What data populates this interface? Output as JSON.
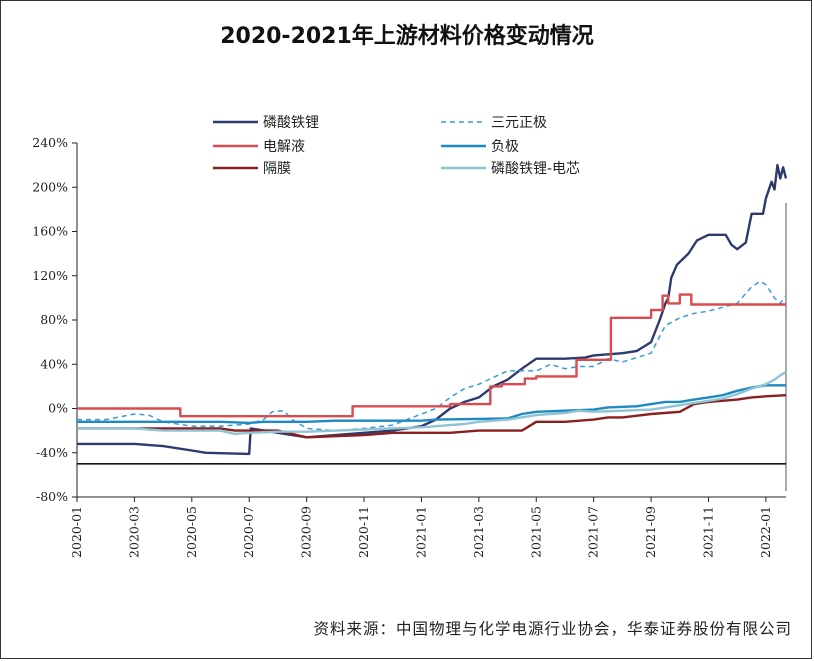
{
  "chart_data": {
    "type": "line",
    "title": "2020-2021年上游材料价格变动情况",
    "source": "资料来源：中国物理与化学电源行业协会，华泰证券股份有限公司",
    "ylim": [
      -80,
      240
    ],
    "yticks": [
      "240%",
      "200%",
      "160%",
      "120%",
      "80%",
      "40%",
      "0%",
      "-40%",
      "-80%"
    ],
    "xlim": [
      0,
      24.7
    ],
    "xticks": [
      "2020-01",
      "2020-03",
      "2020-05",
      "2020-07",
      "2020-09",
      "2020-11",
      "2021-01",
      "2021-03",
      "2021-05",
      "2021-07",
      "2021-09",
      "2021-11",
      "2022-01"
    ],
    "legend_position": "top",
    "series": [
      {
        "name": "磷酸铁锂",
        "color": "#2e3a6e",
        "dash": false,
        "points": [
          [
            0,
            -32
          ],
          [
            2,
            -32
          ],
          [
            3,
            -34
          ],
          [
            4,
            -38
          ],
          [
            4.5,
            -40
          ],
          [
            6,
            -41
          ],
          [
            6.05,
            -18
          ],
          [
            7,
            -22
          ],
          [
            8,
            -26
          ],
          [
            9,
            -24
          ],
          [
            10,
            -22
          ],
          [
            11,
            -20
          ],
          [
            12,
            -16
          ],
          [
            12.5,
            -10
          ],
          [
            13,
            0
          ],
          [
            13.5,
            6
          ],
          [
            14,
            10
          ],
          [
            14.5,
            20
          ],
          [
            15,
            26
          ],
          [
            15.5,
            36
          ],
          [
            16,
            45
          ],
          [
            17,
            45
          ],
          [
            17.7,
            46
          ],
          [
            18,
            48
          ],
          [
            19,
            50
          ],
          [
            19.5,
            52
          ],
          [
            20,
            60
          ],
          [
            20.3,
            80
          ],
          [
            20.5,
            95
          ],
          [
            20.6,
            100
          ],
          [
            20.7,
            118
          ],
          [
            20.9,
            130
          ],
          [
            21.3,
            140
          ],
          [
            21.6,
            152
          ],
          [
            22,
            157
          ],
          [
            22.6,
            157
          ],
          [
            22.8,
            148
          ],
          [
            23,
            144
          ],
          [
            23.3,
            150
          ],
          [
            23.5,
            176
          ],
          [
            23.9,
            176
          ],
          [
            24.0,
            190
          ],
          [
            24.2,
            205
          ],
          [
            24.3,
            198
          ],
          [
            24.4,
            220
          ],
          [
            24.5,
            208
          ],
          [
            24.6,
            218
          ],
          [
            24.7,
            208
          ]
        ]
      },
      {
        "name": "三元正极",
        "color": "#3a9ad9",
        "dash": true,
        "points": [
          [
            0,
            -10
          ],
          [
            1,
            -10
          ],
          [
            2,
            -5
          ],
          [
            2.5,
            -6
          ],
          [
            3,
            -12
          ],
          [
            4,
            -16
          ],
          [
            5,
            -16
          ],
          [
            6,
            -14
          ],
          [
            6.5,
            -10
          ],
          [
            6.8,
            -3
          ],
          [
            7.2,
            -2
          ],
          [
            7.5,
            -10
          ],
          [
            8,
            -18
          ],
          [
            9,
            -20
          ],
          [
            10,
            -18
          ],
          [
            11,
            -15
          ],
          [
            11.5,
            -10
          ],
          [
            12,
            -5
          ],
          [
            12.5,
            0
          ],
          [
            13,
            10
          ],
          [
            13.5,
            18
          ],
          [
            14,
            22
          ],
          [
            14.5,
            28
          ],
          [
            15,
            34
          ],
          [
            16,
            34
          ],
          [
            16.5,
            40
          ],
          [
            17,
            36
          ],
          [
            17.5,
            38
          ],
          [
            18,
            38
          ],
          [
            18.5,
            45
          ],
          [
            19,
            42
          ],
          [
            19.5,
            46
          ],
          [
            20,
            50
          ],
          [
            20.2,
            60
          ],
          [
            20.5,
            75
          ],
          [
            21,
            82
          ],
          [
            21.5,
            86
          ],
          [
            22,
            88
          ],
          [
            23,
            95
          ],
          [
            23.5,
            110
          ],
          [
            23.8,
            115
          ],
          [
            24,
            112
          ],
          [
            24.3,
            100
          ],
          [
            24.5,
            95
          ],
          [
            24.7,
            102
          ]
        ]
      },
      {
        "name": "电解液",
        "color": "#d94b4f",
        "dash": false,
        "points": [
          [
            0,
            0
          ],
          [
            3.6,
            0
          ],
          [
            3.6,
            -7
          ],
          [
            9.6,
            -7
          ],
          [
            9.6,
            2
          ],
          [
            13,
            2
          ],
          [
            13,
            4
          ],
          [
            14.4,
            4
          ],
          [
            14.4,
            20
          ],
          [
            14.8,
            20
          ],
          [
            14.8,
            22
          ],
          [
            15.6,
            22
          ],
          [
            15.6,
            27
          ],
          [
            16,
            27
          ],
          [
            16,
            29
          ],
          [
            17.4,
            29
          ],
          [
            17.4,
            44
          ],
          [
            18.6,
            44
          ],
          [
            18.6,
            82
          ],
          [
            20,
            82
          ],
          [
            20,
            89
          ],
          [
            20.4,
            89
          ],
          [
            20.4,
            102
          ],
          [
            20.6,
            102
          ],
          [
            20.6,
            95
          ],
          [
            21,
            95
          ],
          [
            21,
            103
          ],
          [
            21.4,
            103
          ],
          [
            21.4,
            94
          ],
          [
            24.7,
            94
          ]
        ]
      },
      {
        "name": "负极",
        "color": "#1f8ac0",
        "dash": false,
        "points": [
          [
            0,
            -12
          ],
          [
            5,
            -12
          ],
          [
            6,
            -13
          ],
          [
            6.5,
            -12
          ],
          [
            8,
            -12
          ],
          [
            9,
            -11
          ],
          [
            12,
            -11
          ],
          [
            12.5,
            -10
          ],
          [
            15,
            -9
          ],
          [
            15.5,
            -5
          ],
          [
            16,
            -3
          ],
          [
            17,
            -2
          ],
          [
            18,
            -1
          ],
          [
            18.5,
            1
          ],
          [
            19.5,
            2
          ],
          [
            20,
            4
          ],
          [
            20.5,
            6
          ],
          [
            21,
            6
          ],
          [
            21.5,
            8
          ],
          [
            22,
            10
          ],
          [
            22.5,
            12
          ],
          [
            23,
            16
          ],
          [
            23.5,
            19
          ],
          [
            24,
            21
          ],
          [
            24.7,
            21
          ]
        ]
      },
      {
        "name": "隔膜",
        "color": "#8a1f1f",
        "dash": false,
        "points": [
          [
            0,
            -18
          ],
          [
            5,
            -18
          ],
          [
            5.5,
            -20
          ],
          [
            7,
            -20
          ],
          [
            8,
            -26
          ],
          [
            10,
            -24
          ],
          [
            11,
            -22
          ],
          [
            12.5,
            -22
          ],
          [
            13,
            -22
          ],
          [
            14,
            -20
          ],
          [
            15.5,
            -20
          ],
          [
            16,
            -12
          ],
          [
            17,
            -12
          ],
          [
            18,
            -10
          ],
          [
            18.5,
            -8
          ],
          [
            19,
            -8
          ],
          [
            20,
            -5
          ],
          [
            21,
            -3
          ],
          [
            21.5,
            4
          ],
          [
            22,
            6
          ],
          [
            23,
            8
          ],
          [
            23.5,
            10
          ],
          [
            24,
            11
          ],
          [
            24.7,
            12
          ]
        ]
      },
      {
        "name": "磷酸铁锂-电芯",
        "color": "#8fc4d6",
        "dash": false,
        "points": [
          [
            0,
            -18
          ],
          [
            2,
            -18
          ],
          [
            3,
            -20
          ],
          [
            5,
            -20
          ],
          [
            5.5,
            -23
          ],
          [
            6,
            -22
          ],
          [
            7,
            -21
          ],
          [
            8,
            -21
          ],
          [
            10,
            -19
          ],
          [
            11,
            -18
          ],
          [
            12,
            -17
          ],
          [
            13,
            -15
          ],
          [
            13.5,
            -14
          ],
          [
            14,
            -12
          ],
          [
            15,
            -10
          ],
          [
            16,
            -6
          ],
          [
            17,
            -4
          ],
          [
            17.5,
            -2
          ],
          [
            18,
            -3
          ],
          [
            19,
            -2
          ],
          [
            20,
            -1
          ],
          [
            20.5,
            1
          ],
          [
            21,
            3
          ],
          [
            21.5,
            5
          ],
          [
            22,
            7
          ],
          [
            22.5,
            9
          ],
          [
            23,
            13
          ],
          [
            23.5,
            18
          ],
          [
            24,
            22
          ],
          [
            24.3,
            26
          ],
          [
            24.5,
            30
          ],
          [
            24.7,
            33
          ]
        ]
      }
    ]
  }
}
